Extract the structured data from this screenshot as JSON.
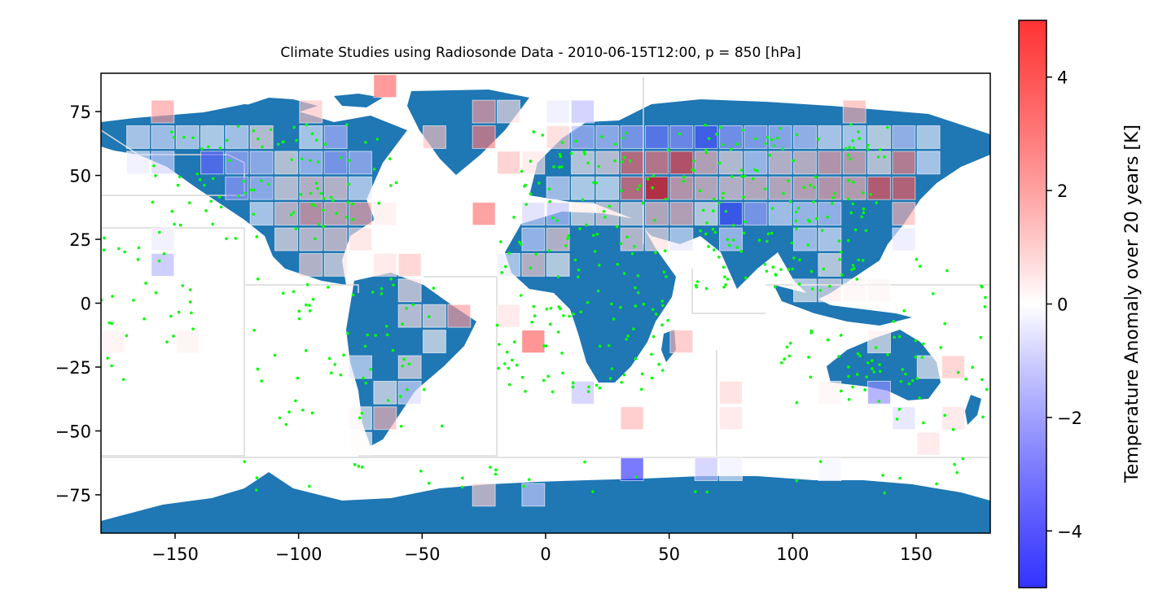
{
  "chart_data": {
    "type": "heatmap",
    "title": "Climate Studies using Radiosonde Data - 2010-06-15T12:00, p = 850 [hPa]",
    "xlim": [
      -180,
      180
    ],
    "ylim": [
      -90,
      90
    ],
    "xticks": [
      -150,
      -100,
      -50,
      0,
      50,
      100,
      150
    ],
    "xtick_labels": [
      "−150",
      "−100",
      "−50",
      "0",
      "50",
      "100",
      "150"
    ],
    "yticks": [
      75,
      50,
      25,
      0,
      -25,
      -50,
      -75
    ],
    "ytick_labels": [
      "75",
      "50",
      "25",
      "0",
      "−25",
      "−50",
      "−75"
    ],
    "grid_step_deg": 10,
    "colorbar": {
      "label": "Temperature Anomaly over 20 years [K]",
      "range": [
        -5,
        5
      ],
      "ticks": [
        4,
        2,
        0,
        -2,
        -4
      ],
      "tick_labels": [
        "4",
        "2",
        "0",
        "−2",
        "−4"
      ],
      "colormap": "bwr",
      "low_color": "#0000ff",
      "mid_color": "#ffffff",
      "high_color": "#ff0000"
    },
    "colors": {
      "land": "#1f77b4",
      "stations": "#00ff00",
      "no_data_hatch": "#cccccc",
      "borders": "#d9d9d9"
    },
    "anomaly_cells_lon_lat_value": [
      [
        -155,
        75,
        2.0
      ],
      [
        -95,
        75,
        1.2
      ],
      [
        -25,
        75,
        2.0
      ],
      [
        -15,
        75,
        0.6
      ],
      [
        5,
        75,
        -0.4
      ],
      [
        15,
        75,
        -1.3
      ],
      [
        125,
        75,
        1.6
      ],
      [
        -65,
        85,
        3.0
      ],
      [
        -25,
        65,
        2.6
      ],
      [
        -45,
        65,
        1.2
      ],
      [
        5,
        65,
        0.9
      ],
      [
        -165,
        65,
        -0.4
      ],
      [
        -155,
        65,
        -0.6
      ],
      [
        -145,
        65,
        -0.5
      ],
      [
        -135,
        65,
        -0.2
      ],
      [
        -125,
        65,
        -0.5
      ],
      [
        -115,
        65,
        0.6
      ],
      [
        -95,
        65,
        -0.4
      ],
      [
        -85,
        65,
        -1.5
      ],
      [
        15,
        65,
        -1.4
      ],
      [
        25,
        65,
        -1.2
      ],
      [
        35,
        65,
        -1.8
      ],
      [
        45,
        65,
        -2.7
      ],
      [
        55,
        65,
        -2.2
      ],
      [
        65,
        65,
        -3.4
      ],
      [
        75,
        65,
        -2.0
      ],
      [
        85,
        65,
        -1.6
      ],
      [
        95,
        65,
        -1.3
      ],
      [
        105,
        65,
        -1.0
      ],
      [
        115,
        65,
        -0.4
      ],
      [
        125,
        65,
        -0.4
      ],
      [
        135,
        65,
        0.2
      ],
      [
        145,
        65,
        -1.0
      ],
      [
        155,
        65,
        -0.3
      ],
      [
        -135,
        55,
        -3.0
      ],
      [
        -125,
        55,
        -1.6
      ],
      [
        -115,
        55,
        -1.2
      ],
      [
        -105,
        55,
        0.5
      ],
      [
        -95,
        55,
        -1.0
      ],
      [
        -85,
        55,
        -1.8
      ],
      [
        -75,
        55,
        -1.4
      ],
      [
        -15,
        55,
        1.3
      ],
      [
        -5,
        55,
        0.5
      ],
      [
        15,
        55,
        0.4
      ],
      [
        25,
        55,
        0.6
      ],
      [
        35,
        55,
        3.0
      ],
      [
        45,
        55,
        2.7
      ],
      [
        55,
        55,
        3.8
      ],
      [
        65,
        55,
        1.5
      ],
      [
        75,
        55,
        0.7
      ],
      [
        85,
        55,
        -0.8
      ],
      [
        95,
        55,
        1.0
      ],
      [
        105,
        55,
        1.1
      ],
      [
        115,
        55,
        1.8
      ],
      [
        125,
        55,
        1.6
      ],
      [
        135,
        55,
        0.5
      ],
      [
        145,
        55,
        2.5
      ],
      [
        155,
        55,
        -0.4
      ],
      [
        -165,
        55,
        -0.4
      ],
      [
        -155,
        55,
        -0.8
      ],
      [
        -125,
        45,
        -2.0
      ],
      [
        -115,
        45,
        -1.2
      ],
      [
        -105,
        45,
        0.6
      ],
      [
        -95,
        45,
        1.0
      ],
      [
        -85,
        45,
        0.9
      ],
      [
        -75,
        45,
        -0.4
      ],
      [
        5,
        45,
        -0.6
      ],
      [
        15,
        45,
        -0.2
      ],
      [
        25,
        45,
        -0.2
      ],
      [
        35,
        45,
        3.0
      ],
      [
        45,
        45,
        4.8
      ],
      [
        55,
        45,
        1.8
      ],
      [
        65,
        45,
        1.3
      ],
      [
        75,
        45,
        1.0
      ],
      [
        85,
        45,
        1.2
      ],
      [
        95,
        45,
        1.3
      ],
      [
        105,
        45,
        1.5
      ],
      [
        115,
        45,
        1.8
      ],
      [
        125,
        45,
        1.6
      ],
      [
        135,
        45,
        3.5
      ],
      [
        145,
        45,
        3.3
      ],
      [
        -115,
        35,
        -0.4
      ],
      [
        -105,
        35,
        1.0
      ],
      [
        -95,
        35,
        2.0
      ],
      [
        -85,
        35,
        1.5
      ],
      [
        -75,
        35,
        1.8
      ],
      [
        -65,
        35,
        0.4
      ],
      [
        -25,
        35,
        2.8
      ],
      [
        -5,
        35,
        -0.8
      ],
      [
        5,
        35,
        -1.2
      ],
      [
        15,
        35,
        0.4
      ],
      [
        25,
        35,
        0.6
      ],
      [
        35,
        35,
        0.5
      ],
      [
        45,
        35,
        1.3
      ],
      [
        55,
        35,
        1.5
      ],
      [
        65,
        35,
        0.3
      ],
      [
        75,
        35,
        -3.6
      ],
      [
        85,
        35,
        -1.8
      ],
      [
        95,
        35,
        -0.6
      ],
      [
        105,
        35,
        -0.8
      ],
      [
        115,
        35,
        -1.0
      ],
      [
        145,
        35,
        1.5
      ],
      [
        -155,
        25,
        -0.4
      ],
      [
        -105,
        25,
        0.5
      ],
      [
        -95,
        25,
        0.8
      ],
      [
        -85,
        25,
        0.9
      ],
      [
        -75,
        25,
        0.7
      ],
      [
        -5,
        25,
        -0.9
      ],
      [
        5,
        25,
        1.0
      ],
      [
        35,
        25,
        0.8
      ],
      [
        45,
        25,
        0.6
      ],
      [
        55,
        25,
        -0.5
      ],
      [
        75,
        25,
        -0.9
      ],
      [
        105,
        25,
        -0.7
      ],
      [
        115,
        25,
        -0.4
      ],
      [
        145,
        25,
        -0.5
      ],
      [
        -155,
        15,
        -1.5
      ],
      [
        -95,
        15,
        0.9
      ],
      [
        -85,
        15,
        0.5
      ],
      [
        -65,
        15,
        0.6
      ],
      [
        -55,
        15,
        1.2
      ],
      [
        -15,
        15,
        -0.4
      ],
      [
        -5,
        15,
        1.0
      ],
      [
        5,
        15,
        0.2
      ],
      [
        115,
        15,
        0.3
      ],
      [
        -55,
        5,
        0.6
      ],
      [
        105,
        5,
        0.2
      ],
      [
        115,
        5,
        0.4
      ],
      [
        125,
        5,
        0.2
      ],
      [
        135,
        5,
        0.2
      ],
      [
        -55,
        -5,
        0.6
      ],
      [
        -45,
        -5,
        0.5
      ],
      [
        -35,
        -5,
        2.0
      ],
      [
        -15,
        -5,
        0.6
      ],
      [
        -175,
        -15,
        0.3
      ],
      [
        -145,
        -15,
        0.3
      ],
      [
        -45,
        -15,
        0.2
      ],
      [
        -5,
        -15,
        3.2
      ],
      [
        55,
        -15,
        1.5
      ],
      [
        135,
        -15,
        0.3
      ],
      [
        -75,
        -25,
        -0.5
      ],
      [
        -55,
        -25,
        0.5
      ],
      [
        155,
        -25,
        0.2
      ],
      [
        165,
        -25,
        1.2
      ],
      [
        -65,
        -35,
        0.3
      ],
      [
        -55,
        -35,
        -0.7
      ],
      [
        15,
        -35,
        -1.2
      ],
      [
        75,
        -35,
        0.8
      ],
      [
        115,
        -35,
        0.2
      ],
      [
        135,
        -35,
        -2.2
      ],
      [
        -75,
        -45,
        0.2
      ],
      [
        -65,
        -45,
        1.5
      ],
      [
        35,
        -45,
        1.5
      ],
      [
        75,
        -45,
        0.6
      ],
      [
        145,
        -45,
        -0.7
      ],
      [
        165,
        -45,
        0.6
      ],
      [
        -75,
        -55,
        0.1
      ],
      [
        155,
        -55,
        0.6
      ],
      [
        35,
        -65,
        -4.0
      ],
      [
        65,
        -65,
        -1.2
      ],
      [
        75,
        -65,
        -0.3
      ],
      [
        115,
        -65,
        -0.2
      ],
      [
        -25,
        -75,
        1.0
      ],
      [
        -5,
        -75,
        -1.0
      ]
    ]
  }
}
